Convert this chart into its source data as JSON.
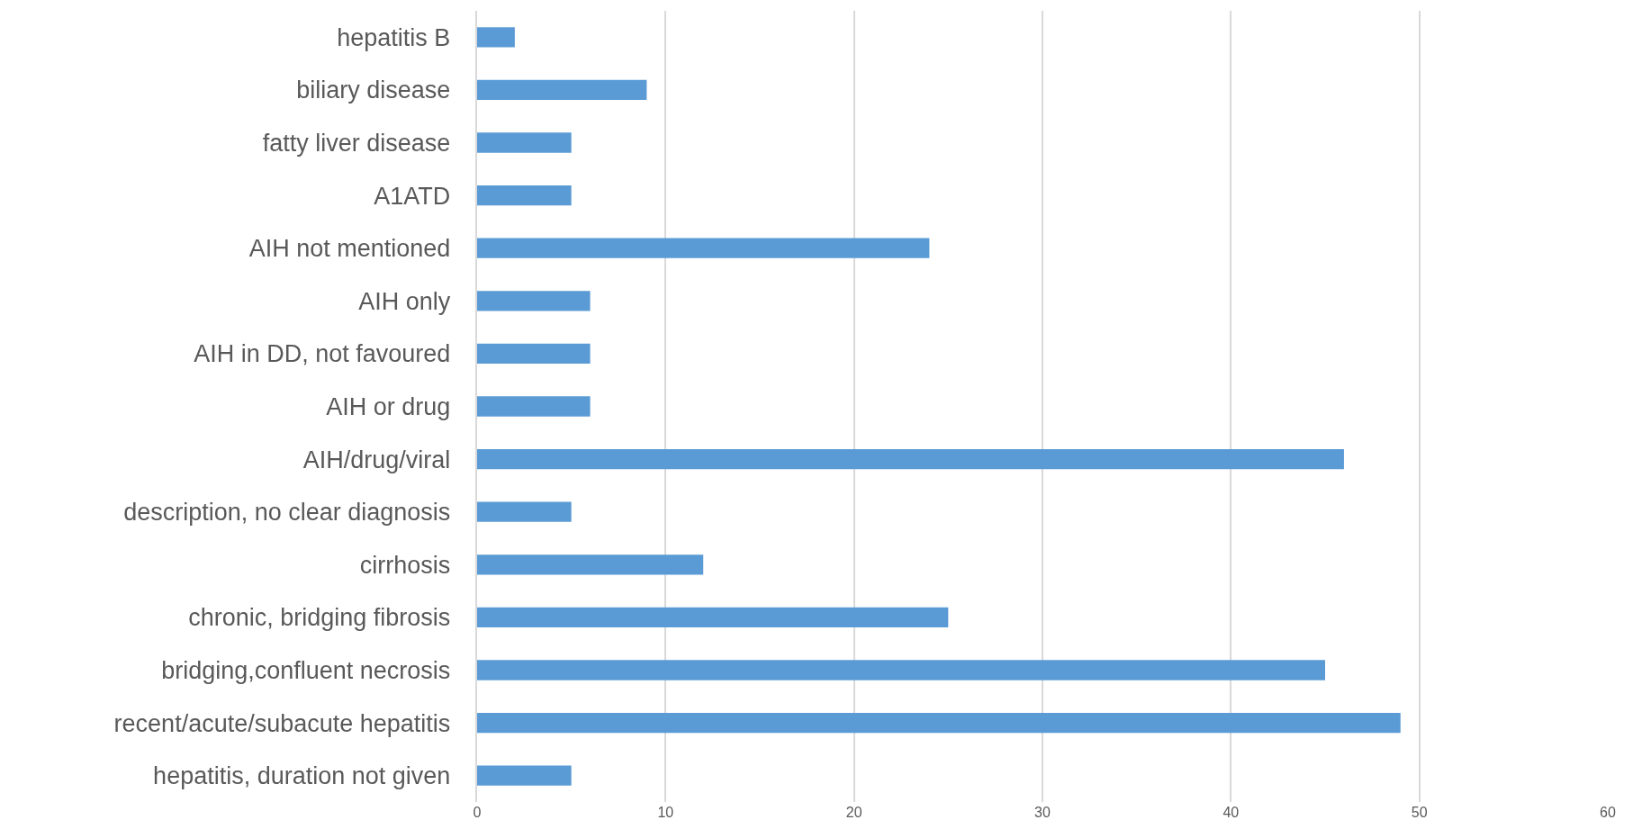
{
  "chart_data": {
    "type": "bar",
    "orientation": "horizontal",
    "categories": [
      "hepatitis B",
      "biliary disease",
      "fatty liver disease",
      "A1ATD",
      "AIH not mentioned",
      "AIH only",
      "AIH in DD, not favoured",
      "AIH or drug",
      "AIH/drug/viral",
      "description, no clear diagnosis",
      "cirrhosis",
      "chronic, bridging fibrosis",
      "bridging,confluent necrosis",
      "recent/acute/subacute hepatitis",
      "hepatitis, duration not given"
    ],
    "values": [
      2,
      9,
      5,
      5,
      24,
      6,
      6,
      6,
      46,
      5,
      12,
      25,
      45,
      49,
      5
    ],
    "color": "#5b9bd5",
    "xlim": [
      0,
      60
    ],
    "xticks": [
      0,
      10,
      20,
      30,
      40,
      50,
      60
    ],
    "grid": "x"
  }
}
